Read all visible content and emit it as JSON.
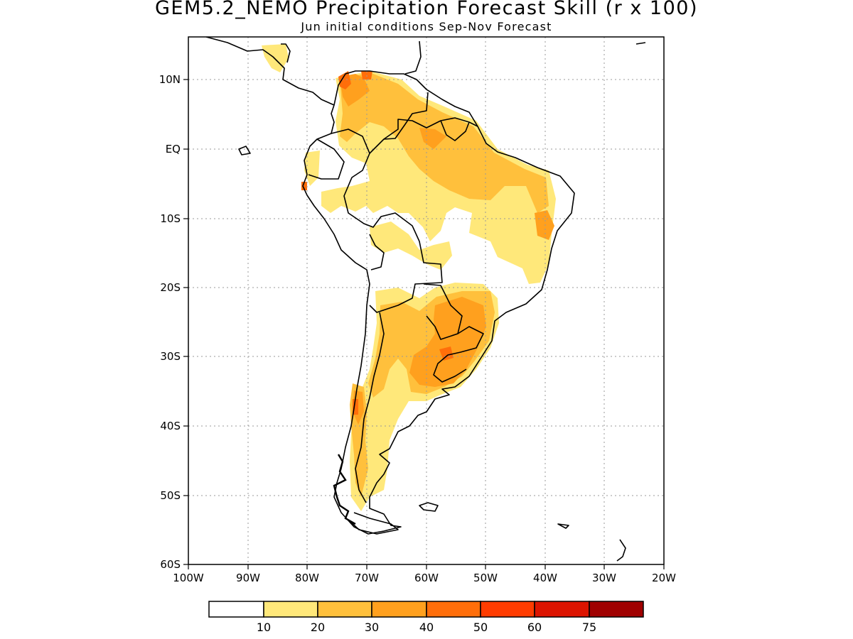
{
  "title": "GEM5.2_NEMO Precipitation Forecast Skill (r x 100)",
  "subtitle": "Jun initial conditions  Sep-Nov Forecast",
  "map": {
    "lat_ticks": [
      "10N",
      "EQ",
      "10S",
      "20S",
      "30S",
      "40S",
      "50S",
      "60S"
    ],
    "lon_ticks": [
      "100W",
      "90W",
      "80W",
      "70W",
      "60W",
      "50W",
      "40W",
      "30W",
      "20W"
    ],
    "lon_range": [
      -100,
      -20
    ],
    "lat_range": [
      -60,
      16
    ],
    "grid": true,
    "region": "South America"
  },
  "colorbar": {
    "labels": [
      "10",
      "20",
      "30",
      "40",
      "50",
      "60",
      "75"
    ],
    "colors": [
      "#ffffff",
      "#ffe87a",
      "#ffc03c",
      "#ffa01e",
      "#ff6e0a",
      "#ff3c00",
      "#dc1400",
      "#a00000"
    ]
  },
  "shading": {
    "colors": {
      "c10": "#ffe87a",
      "c20": "#ffc03c",
      "c30": "#ffa01e",
      "c40": "#ff6e0a",
      "c50": "#ff3c00"
    }
  }
}
